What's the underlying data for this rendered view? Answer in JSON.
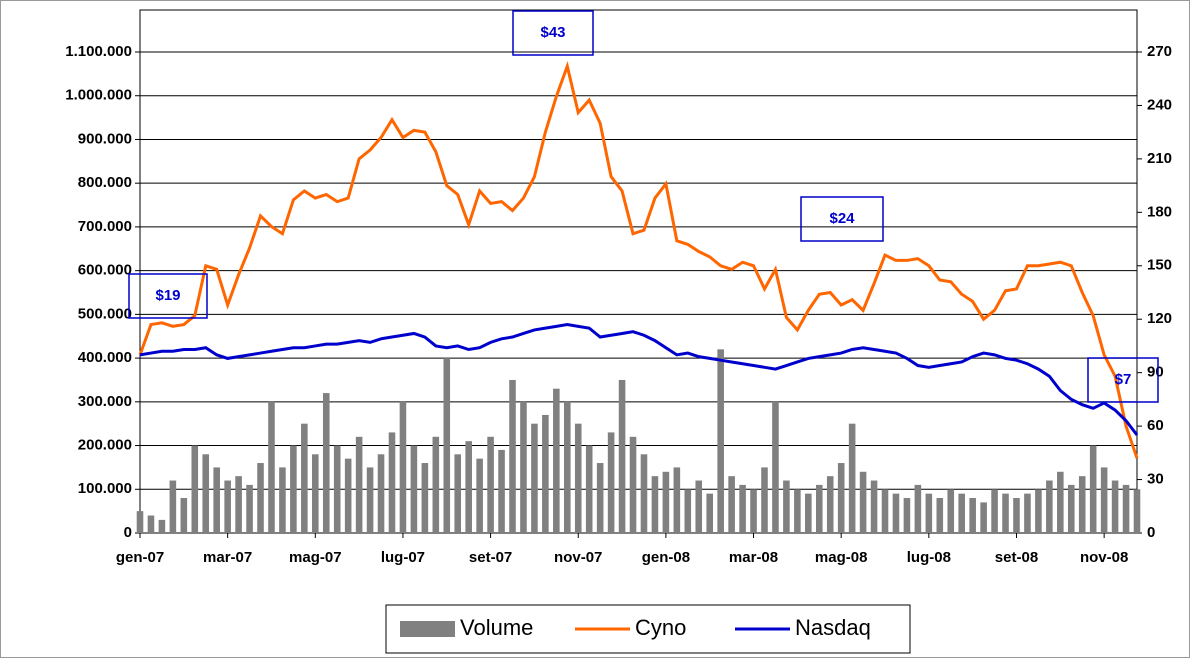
{
  "chart_data": {
    "type": "bar-line",
    "categories": [
      "gen-07",
      null,
      null,
      null,
      null,
      null,
      null,
      null,
      "mar-07",
      null,
      null,
      null,
      null,
      null,
      null,
      null,
      "mag-07",
      null,
      null,
      null,
      null,
      null,
      null,
      null,
      "lug-07",
      null,
      null,
      null,
      null,
      null,
      null,
      null,
      "set-07",
      null,
      null,
      null,
      null,
      null,
      null,
      null,
      "nov-07",
      null,
      null,
      null,
      null,
      null,
      null,
      null,
      "gen-08",
      null,
      null,
      null,
      null,
      null,
      null,
      null,
      "mar-08",
      null,
      null,
      null,
      null,
      null,
      null,
      null,
      "mag-08",
      null,
      null,
      null,
      null,
      null,
      null,
      null,
      "lug-08",
      null,
      null,
      null,
      null,
      null,
      null,
      null,
      "set-08",
      null,
      null,
      null,
      null,
      null,
      null,
      null,
      "nov-08",
      null,
      null,
      null
    ],
    "series": [
      {
        "name": "Volume",
        "color": "#808080",
        "axis": "y",
        "values": [
          50000,
          40000,
          30000,
          120000,
          80000,
          200000,
          180000,
          150000,
          120000,
          130000,
          110000,
          160000,
          300000,
          150000,
          200000,
          250000,
          180000,
          320000,
          200000,
          170000,
          220000,
          150000,
          180000,
          230000,
          300000,
          200000,
          160000,
          220000,
          400000,
          180000,
          210000,
          170000,
          220000,
          190000,
          350000,
          300000,
          250000,
          270000,
          330000,
          300000,
          250000,
          200000,
          160000,
          230000,
          350000,
          220000,
          180000,
          130000,
          140000,
          150000,
          100000,
          120000,
          90000,
          420000,
          130000,
          110000,
          100000,
          150000,
          300000,
          120000,
          100000,
          90000,
          110000,
          130000,
          160000,
          250000,
          140000,
          120000,
          100000,
          90000,
          80000,
          110000,
          90000,
          80000,
          100000,
          90000,
          80000,
          70000,
          100000,
          90000,
          80000,
          90000,
          100000,
          120000,
          140000,
          110000,
          130000,
          200000,
          150000,
          120000,
          110000,
          100000
        ]
      },
      {
        "name": "Cyno",
        "color": "#ff6600",
        "axis": "y2",
        "values": [
          100,
          117,
          118,
          116,
          117,
          122,
          150,
          148,
          128,
          145,
          160,
          178,
          172,
          168,
          187,
          192,
          188,
          190,
          186,
          188,
          210,
          215,
          222,
          232,
          222,
          226,
          225,
          214,
          195,
          190,
          173,
          192,
          185,
          186,
          181,
          188,
          200,
          225,
          245,
          262,
          236,
          243,
          230,
          200,
          192,
          168,
          170,
          188,
          196,
          164,
          162,
          158,
          155,
          150,
          148,
          152,
          150,
          137,
          148,
          121,
          114,
          125,
          134,
          135,
          128,
          131,
          125,
          140,
          156,
          153,
          153,
          154,
          150,
          142,
          141,
          134,
          130,
          120,
          125,
          136,
          137,
          150,
          150,
          151,
          152,
          150,
          135,
          122,
          100,
          88,
          60,
          42
        ]
      },
      {
        "name": "Nasdaq",
        "color": "#0000cc",
        "axis": "y2",
        "values": [
          100,
          101,
          102,
          102,
          103,
          103,
          104,
          100,
          98,
          99,
          100,
          101,
          102,
          103,
          104,
          104,
          105,
          106,
          106,
          107,
          108,
          107,
          109,
          110,
          111,
          112,
          110,
          105,
          104,
          105,
          103,
          104,
          107,
          109,
          110,
          112,
          114,
          115,
          116,
          117,
          116,
          115,
          110,
          111,
          112,
          113,
          111,
          108,
          104,
          100,
          101,
          99,
          98,
          97,
          96,
          95,
          94,
          93,
          92,
          94,
          96,
          98,
          99,
          100,
          101,
          103,
          104,
          103,
          102,
          101,
          98,
          94,
          93,
          94,
          95,
          96,
          99,
          101,
          100,
          98,
          97,
          95,
          92,
          88,
          80,
          75,
          72,
          70,
          73,
          69,
          63,
          55
        ]
      }
    ],
    "ylim": [
      0,
      1100000
    ],
    "yticks": [
      0,
      {
        "value": 100000,
        "label": "100.000"
      },
      {
        "value": 200000,
        "label": "200.000"
      },
      {
        "value": 300000,
        "label": "300.000"
      },
      {
        "value": 400000,
        "label": "400.000"
      },
      {
        "value": 500000,
        "label": "500.000"
      },
      {
        "value": 600000,
        "label": "600.000"
      },
      {
        "value": 700000,
        "label": "700.000"
      },
      {
        "value": 800000,
        "label": "800.000"
      },
      {
        "value": 900000,
        "label": "900.000"
      },
      {
        "value": 1000000,
        "label": "1.000.000"
      },
      {
        "value": 1100000,
        "label": "1.100.000"
      }
    ],
    "y2lim": [
      0,
      270
    ],
    "y2ticks": [
      0,
      30,
      60,
      90,
      120,
      150,
      180,
      210,
      240,
      270
    ],
    "grid": true,
    "legend": "bottom",
    "annotations": [
      "$19",
      "$43",
      "$24",
      "$7"
    ]
  }
}
